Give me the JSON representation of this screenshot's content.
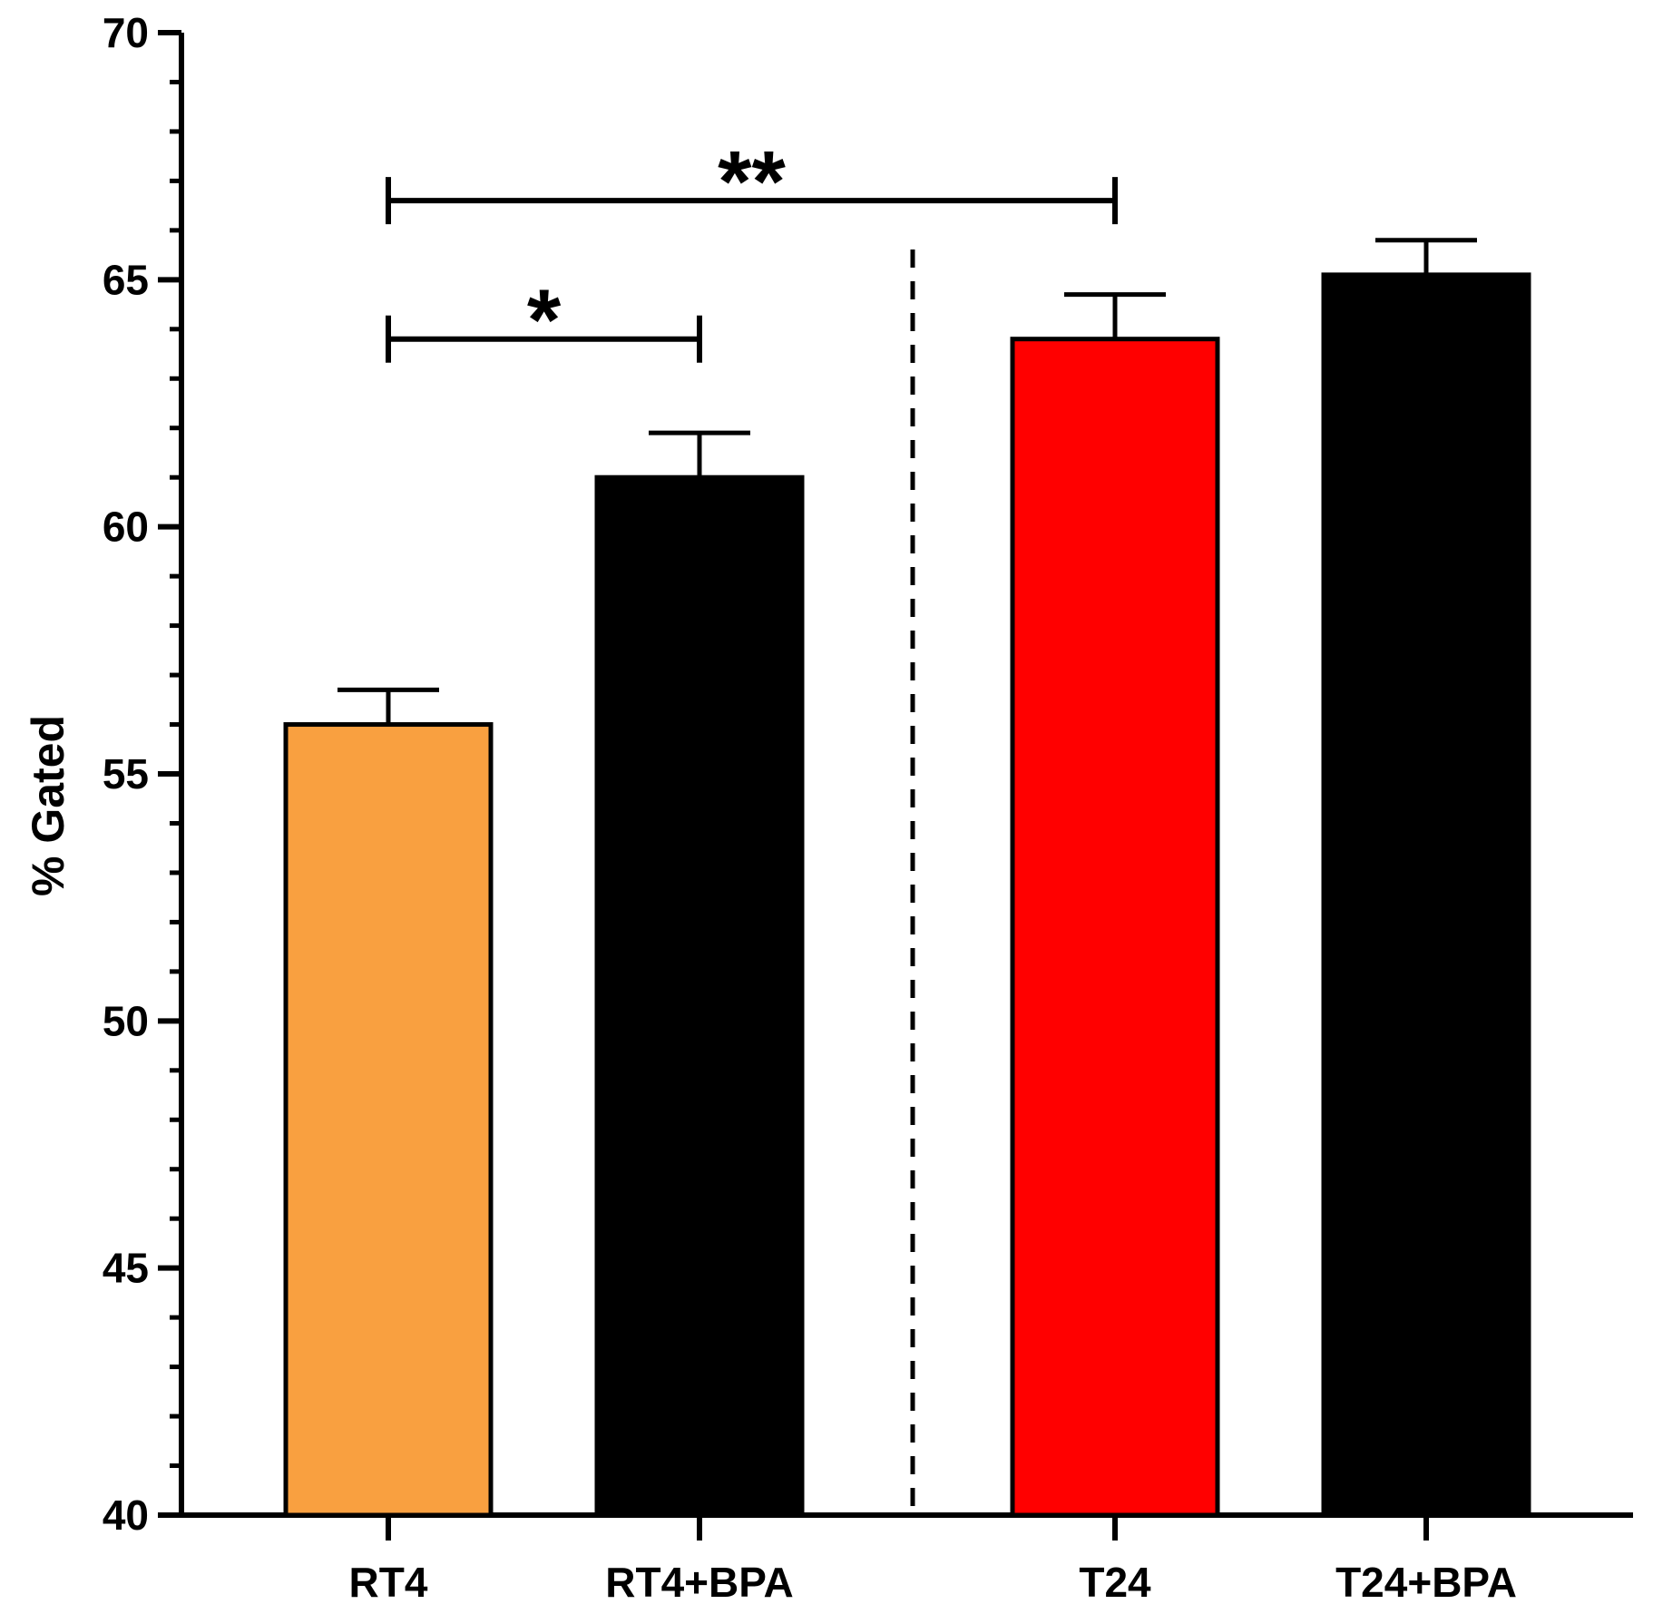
{
  "chart_data": {
    "type": "bar",
    "title": "",
    "xlabel": "",
    "ylabel": "% Gated",
    "ylim": [
      40,
      70
    ],
    "yticks": [
      40,
      45,
      50,
      55,
      60,
      65,
      70
    ],
    "minor_ticks_per_major": 5,
    "grid": false,
    "categories": [
      "RT4",
      "RT4+BPA",
      "T24",
      "T24+BPA"
    ],
    "values": [
      56.0,
      61.0,
      63.8,
      65.1
    ],
    "errors": [
      0.7,
      0.9,
      0.9,
      0.7
    ],
    "colors": [
      "#F9A040",
      "#000000",
      "#FF0000",
      "#000000"
    ],
    "group_separator_after": 1,
    "significance": [
      {
        "from": 0,
        "to": 1,
        "label": "*",
        "y": 63.8
      },
      {
        "from": 0,
        "to": 2,
        "label": "**",
        "y": 66.6
      }
    ]
  }
}
